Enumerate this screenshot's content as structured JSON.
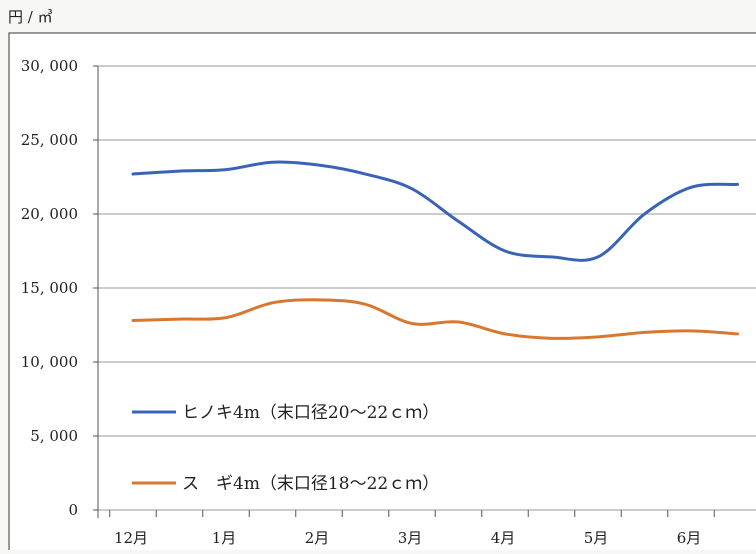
{
  "chart_data": {
    "type": "line",
    "unit_label": "円 / ㎥",
    "categories": [
      "12月",
      "",
      "1月",
      "",
      "2月",
      "",
      "3月",
      "",
      "4月",
      "",
      "5月",
      "",
      "6月",
      ""
    ],
    "y_ticks": [
      "30, 000",
      "25, 000",
      "20, 000",
      "15, 000",
      "10, 000",
      "5, 000",
      "0"
    ],
    "ylim": [
      0,
      30000
    ],
    "grid": true,
    "legend_position": "lower-left",
    "series": [
      {
        "name": "ヒノキ4m（末口径20～22ｃｍ）",
        "color": "#3a63b8",
        "values": [
          22700,
          22900,
          23000,
          23500,
          23300,
          22700,
          21700,
          19500,
          17500,
          17100,
          17100,
          20000,
          21800,
          22000
        ]
      },
      {
        "name": "ス　ギ4m（末口径18～22ｃｍ）",
        "color": "#d9772f",
        "values": [
          12800,
          12900,
          13000,
          14000,
          14200,
          13900,
          12600,
          12700,
          11900,
          11600,
          11700,
          12000,
          12100,
          11900
        ]
      }
    ]
  }
}
